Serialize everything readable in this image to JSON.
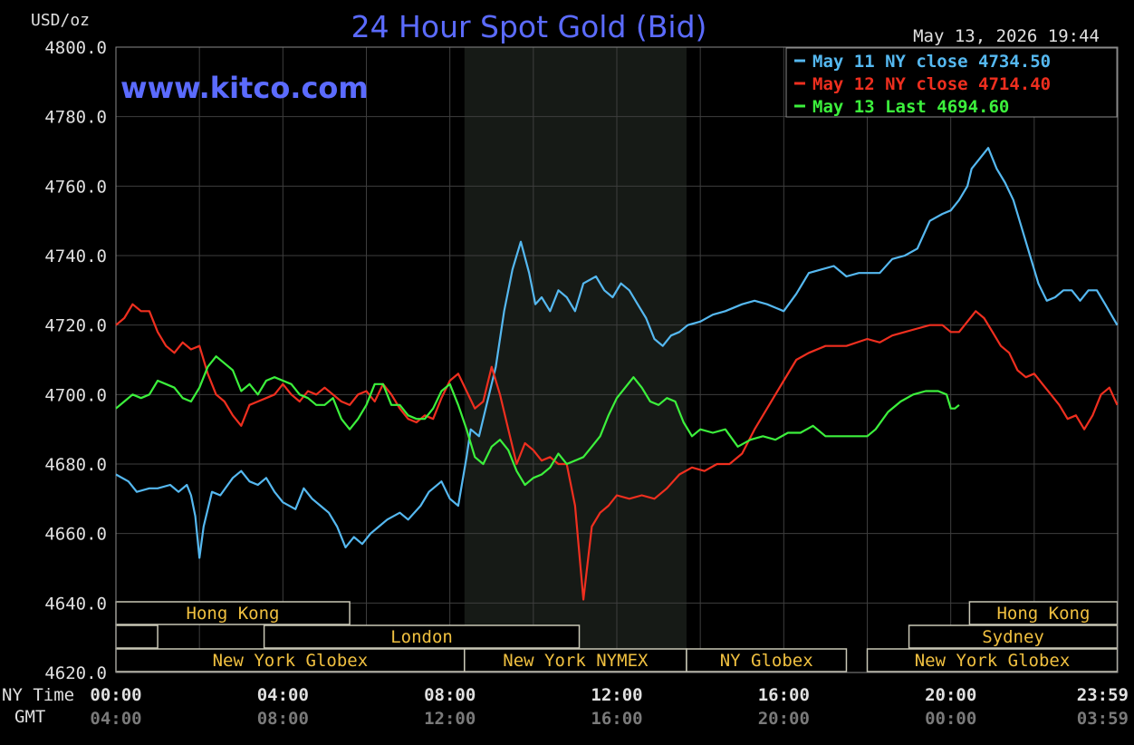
{
  "header": {
    "title": "24 Hour Spot Gold (Bid)",
    "units": "USD/oz",
    "timestamp": "May 13, 2026 19:44",
    "watermark": "www.kitco.com"
  },
  "axes": {
    "ny_label": "NY Time",
    "gmt_label": "GMT",
    "x_ticks_ny": [
      "00:00",
      "04:00",
      "08:00",
      "12:00",
      "16:00",
      "20:00",
      "23:59"
    ],
    "x_ticks_gmt": [
      "04:00",
      "08:00",
      "12:00",
      "16:00",
      "20:00",
      "00:00",
      "03:59"
    ]
  },
  "legend": [
    {
      "text": "May 11 NY close 4734.50",
      "color": "#55b8f0"
    },
    {
      "text": "May 12 NY close 4714.40",
      "color": "#ef2f1f"
    },
    {
      "text": "May 13 Last 4694.60",
      "color": "#3cf03c"
    }
  ],
  "sessions": [
    {
      "label": "Hong Kong",
      "row": 0,
      "start": 0.0,
      "end": 5.6
    },
    {
      "label": "Hong Kong",
      "row": 0,
      "start": 20.45,
      "end": 23.99
    },
    {
      "label": "",
      "row": 1,
      "start": 0.0,
      "end": 1.0
    },
    {
      "label": "London",
      "row": 1,
      "start": 3.55,
      "end": 11.1
    },
    {
      "label": "Sydney",
      "row": 1,
      "start": 19.0,
      "end": 23.99
    },
    {
      "label": "New York Globex",
      "row": 2,
      "start": 0.0,
      "end": 8.35
    },
    {
      "label": "New York NYMEX",
      "row": 2,
      "start": 8.35,
      "end": 13.67
    },
    {
      "label": "NY Globex",
      "row": 2,
      "start": 13.67,
      "end": 17.5
    },
    {
      "label": "New York Globex",
      "row": 2,
      "start": 18.0,
      "end": 23.99
    }
  ],
  "chart_data": {
    "type": "line",
    "title": "24 Hour Spot Gold (Bid)",
    "ylabel": "USD/oz",
    "xlabel": "",
    "xlim": [
      0,
      24
    ],
    "ylim": [
      4620,
      4800
    ],
    "y_ticks": [
      "4800.0",
      "4780.0",
      "4760.0",
      "4740.0",
      "4720.0",
      "4700.0",
      "4680.0",
      "4660.0",
      "4640.0",
      "4620.0"
    ],
    "grid": true,
    "legend_position": "top-right",
    "shaded_hours": [
      8.35,
      13.67
    ],
    "series": [
      {
        "name": "May 11 NY close 4734.50",
        "color": "#55b8f0",
        "x": [
          0.0,
          0.3,
          0.5,
          0.8,
          1.0,
          1.3,
          1.5,
          1.7,
          1.8,
          1.9,
          2.0,
          2.1,
          2.3,
          2.5,
          2.8,
          3.0,
          3.2,
          3.4,
          3.6,
          3.8,
          4.0,
          4.3,
          4.5,
          4.7,
          4.9,
          5.1,
          5.3,
          5.5,
          5.7,
          5.9,
          6.1,
          6.3,
          6.5,
          6.8,
          7.0,
          7.3,
          7.5,
          7.8,
          8.0,
          8.2,
          8.3,
          8.4,
          8.5,
          8.7,
          8.9,
          9.1,
          9.3,
          9.5,
          9.7,
          9.9,
          10.05,
          10.2,
          10.4,
          10.6,
          10.8,
          11.0,
          11.2,
          11.5,
          11.7,
          11.9,
          12.1,
          12.3,
          12.5,
          12.7,
          12.9,
          13.1,
          13.3,
          13.5,
          13.7,
          14.0,
          14.3,
          14.6,
          15.0,
          15.3,
          15.6,
          15.8,
          16.0,
          16.3,
          16.6,
          16.9,
          17.2,
          17.5,
          17.8,
          18.0,
          18.3,
          18.6,
          18.9,
          19.2,
          19.5,
          19.8,
          20.0,
          20.2,
          20.4,
          20.5,
          20.7,
          20.9,
          21.1,
          21.3,
          21.5,
          21.7,
          21.9,
          22.1,
          22.3,
          22.5,
          22.7,
          22.9,
          23.1,
          23.3,
          23.5,
          23.7,
          23.99
        ],
        "y": [
          4677,
          4675,
          4672,
          4673,
          4673,
          4674,
          4672,
          4674,
          4671,
          4665,
          4653,
          4662,
          4672,
          4671,
          4676,
          4678,
          4675,
          4674,
          4676,
          4672,
          4669,
          4667,
          4673,
          4670,
          4668,
          4666,
          4662,
          4656,
          4659,
          4657,
          4660,
          4662,
          4664,
          4666,
          4664,
          4668,
          4672,
          4675,
          4670,
          4668,
          4675,
          4682,
          4690,
          4688,
          4698,
          4708,
          4724,
          4736,
          4744,
          4735,
          4726,
          4728,
          4724,
          4730,
          4728,
          4724,
          4732,
          4734,
          4730,
          4728,
          4732,
          4730,
          4726,
          4722,
          4716,
          4714,
          4717,
          4718,
          4720,
          4721,
          4723,
          4724,
          4726,
          4727,
          4726,
          4725,
          4724,
          4729,
          4735,
          4736,
          4737,
          4734,
          4735,
          4735,
          4735,
          4739,
          4740,
          4742,
          4750,
          4752,
          4753,
          4756,
          4760,
          4765,
          4768,
          4771,
          4765,
          4761,
          4756,
          4748,
          4740,
          4732,
          4727,
          4728,
          4730,
          4730,
          4727,
          4730,
          4730,
          4726,
          4720
        ]
      },
      {
        "name": "May 12 NY close 4714.40",
        "color": "#ef2f1f",
        "x": [
          0.0,
          0.2,
          0.4,
          0.6,
          0.8,
          1.0,
          1.2,
          1.4,
          1.6,
          1.8,
          2.0,
          2.2,
          2.4,
          2.6,
          2.8,
          3.0,
          3.2,
          3.4,
          3.6,
          3.8,
          4.0,
          4.2,
          4.4,
          4.6,
          4.8,
          5.0,
          5.2,
          5.4,
          5.6,
          5.8,
          6.0,
          6.2,
          6.4,
          6.6,
          6.8,
          7.0,
          7.2,
          7.4,
          7.6,
          7.8,
          8.0,
          8.2,
          8.4,
          8.6,
          8.8,
          9.0,
          9.2,
          9.4,
          9.6,
          9.8,
          10.0,
          10.2,
          10.4,
          10.6,
          10.8,
          11.0,
          11.2,
          11.4,
          11.6,
          11.8,
          12.0,
          12.3,
          12.6,
          12.9,
          13.2,
          13.5,
          13.8,
          14.1,
          14.4,
          14.7,
          15.0,
          15.3,
          15.6,
          15.8,
          16.0,
          16.3,
          16.6,
          17.0,
          17.5,
          18.0,
          18.3,
          18.6,
          18.9,
          19.2,
          19.5,
          19.8,
          20.0,
          20.2,
          20.4,
          20.6,
          20.8,
          21.0,
          21.2,
          21.4,
          21.6,
          21.8,
          22.0,
          22.2,
          22.4,
          22.6,
          22.8,
          23.0,
          23.2,
          23.4,
          23.6,
          23.8,
          23.99
        ],
        "y": [
          4720,
          4722,
          4726,
          4724,
          4724,
          4718,
          4714,
          4712,
          4715,
          4713,
          4714,
          4706,
          4700,
          4698,
          4694,
          4691,
          4697,
          4698,
          4699,
          4700,
          4703,
          4700,
          4698,
          4701,
          4700,
          4702,
          4700,
          4698,
          4697,
          4700,
          4701,
          4698,
          4703,
          4700,
          4696,
          4693,
          4692,
          4694,
          4693,
          4699,
          4704,
          4706,
          4701,
          4696,
          4698,
          4708,
          4700,
          4690,
          4680,
          4686,
          4684,
          4681,
          4682,
          4680,
          4680,
          4668,
          4641,
          4662,
          4666,
          4668,
          4671,
          4670,
          4671,
          4670,
          4673,
          4677,
          4679,
          4678,
          4680,
          4680,
          4683,
          4690,
          4696,
          4700,
          4704,
          4710,
          4712,
          4714,
          4714,
          4716,
          4715,
          4717,
          4718,
          4719,
          4720,
          4720,
          4718,
          4718,
          4721,
          4724,
          4722,
          4718,
          4714,
          4712,
          4707,
          4705,
          4706,
          4703,
          4700,
          4697,
          4693,
          4694,
          4690,
          4694,
          4700,
          4702,
          4697
        ]
      },
      {
        "name": "May 13 Last 4694.60",
        "color": "#3cf03c",
        "x": [
          0.0,
          0.2,
          0.4,
          0.6,
          0.8,
          1.0,
          1.2,
          1.4,
          1.6,
          1.8,
          2.0,
          2.2,
          2.4,
          2.6,
          2.8,
          3.0,
          3.2,
          3.4,
          3.6,
          3.8,
          4.0,
          4.2,
          4.4,
          4.6,
          4.8,
          5.0,
          5.2,
          5.4,
          5.6,
          5.8,
          6.0,
          6.2,
          6.4,
          6.6,
          6.8,
          7.0,
          7.2,
          7.4,
          7.6,
          7.8,
          8.0,
          8.2,
          8.4,
          8.6,
          8.8,
          9.0,
          9.2,
          9.4,
          9.6,
          9.8,
          10.0,
          10.2,
          10.4,
          10.6,
          10.8,
          11.0,
          11.2,
          11.4,
          11.6,
          11.8,
          12.0,
          12.2,
          12.4,
          12.6,
          12.8,
          13.0,
          13.2,
          13.4,
          13.6,
          13.8,
          14.0,
          14.3,
          14.6,
          14.9,
          15.2,
          15.5,
          15.8,
          16.1,
          16.4,
          16.7,
          17.0,
          17.5,
          18.0,
          18.2,
          18.5,
          18.8,
          19.1,
          19.4,
          19.7,
          19.9,
          20.0,
          20.1,
          20.2
        ],
        "y": [
          4696,
          4698,
          4700,
          4699,
          4700,
          4704,
          4703,
          4702,
          4699,
          4698,
          4702,
          4708,
          4711,
          4709,
          4707,
          4701,
          4703,
          4700,
          4704,
          4705,
          4704,
          4703,
          4700,
          4699,
          4697,
          4697,
          4699,
          4693,
          4690,
          4693,
          4697,
          4703,
          4703,
          4697,
          4697,
          4694,
          4693,
          4693,
          4696,
          4701,
          4703,
          4697,
          4690,
          4682,
          4680,
          4685,
          4687,
          4684,
          4678,
          4674,
          4676,
          4677,
          4679,
          4683,
          4680,
          4681,
          4682,
          4685,
          4688,
          4694,
          4699,
          4702,
          4705,
          4702,
          4698,
          4697,
          4699,
          4698,
          4692,
          4688,
          4690,
          4689,
          4690,
          4685,
          4687,
          4688,
          4687,
          4689,
          4689,
          4691,
          4688,
          4688,
          4688,
          4690,
          4695,
          4698,
          4700,
          4701,
          4701,
          4700,
          4696,
          4696,
          4697
        ]
      }
    ]
  }
}
